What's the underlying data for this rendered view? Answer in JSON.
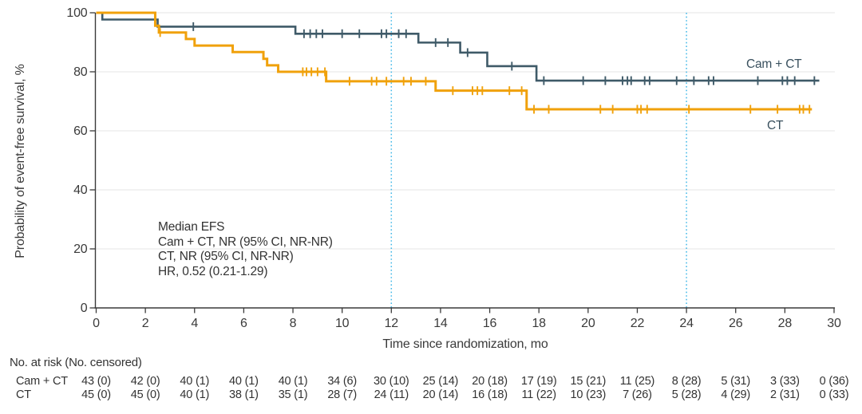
{
  "chart_data": {
    "type": "line",
    "subtype": "kaplan-meier-step-curve",
    "title": "",
    "xlabel": "Time since randomization, mo",
    "ylabel": "Probability of event-free survival, %",
    "xlim": [
      0,
      30
    ],
    "ylim": [
      0,
      100
    ],
    "xticks": [
      0,
      2,
      4,
      6,
      8,
      10,
      12,
      14,
      16,
      18,
      20,
      22,
      24,
      26,
      28,
      30
    ],
    "yticks": [
      0,
      20,
      40,
      60,
      80,
      100
    ],
    "grid": "horizontal light gray lines at 20/40/60/80/100",
    "reference_lines_x": [
      12,
      24
    ],
    "annotation_lines": [
      "Median EFS",
      "Cam + CT, NR (95% CI, NR-NR)",
      "CT, NR (95% CI, NR-NR)",
      "HR, 0.52 (0.21-1.29)"
    ],
    "series": [
      {
        "name": "Cam + CT",
        "color": "#3F5A68",
        "end_month": 29.4,
        "steps": [
          [
            0,
            100
          ],
          [
            0.25,
            97.7
          ],
          [
            2.5,
            95.3
          ],
          [
            8.1,
            92.9
          ],
          [
            13.1,
            89.9
          ],
          [
            14.8,
            86.5
          ],
          [
            15.9,
            81.9
          ],
          [
            17.9,
            77.0
          ]
        ],
        "censor_marks": [
          [
            3.95,
            95.3
          ],
          [
            8.45,
            92.9
          ],
          [
            8.7,
            92.9
          ],
          [
            8.95,
            92.9
          ],
          [
            9.2,
            92.9
          ],
          [
            10.0,
            92.9
          ],
          [
            10.7,
            92.9
          ],
          [
            11.6,
            92.9
          ],
          [
            11.8,
            92.9
          ],
          [
            12.3,
            92.9
          ],
          [
            12.6,
            92.9
          ],
          [
            13.8,
            89.9
          ],
          [
            14.3,
            89.9
          ],
          [
            15.1,
            86.5
          ],
          [
            16.9,
            81.9
          ],
          [
            18.2,
            77.0
          ],
          [
            19.8,
            77.0
          ],
          [
            20.7,
            77.0
          ],
          [
            21.4,
            77.0
          ],
          [
            21.6,
            77.0
          ],
          [
            21.75,
            77.0
          ],
          [
            22.3,
            77.0
          ],
          [
            22.5,
            77.0
          ],
          [
            23.6,
            77.0
          ],
          [
            24.3,
            77.0
          ],
          [
            24.9,
            77.0
          ],
          [
            25.1,
            77.0
          ],
          [
            26.9,
            77.0
          ],
          [
            27.9,
            77.0
          ],
          [
            28.1,
            77.0
          ],
          [
            28.4,
            77.0
          ],
          [
            29.2,
            77.0
          ]
        ]
      },
      {
        "name": "CT",
        "color": "#F0A10B",
        "end_month": 29.1,
        "steps": [
          [
            0,
            100
          ],
          [
            2.4,
            95.6
          ],
          [
            2.55,
            93.3
          ],
          [
            3.65,
            91.1
          ],
          [
            4.0,
            88.9
          ],
          [
            5.55,
            86.7
          ],
          [
            6.8,
            84.4
          ],
          [
            6.95,
            82.2
          ],
          [
            7.4,
            80.0
          ],
          [
            9.35,
            76.8
          ],
          [
            13.8,
            73.6
          ],
          [
            17.5,
            67.3
          ]
        ],
        "censor_marks": [
          [
            2.6,
            93.3
          ],
          [
            8.4,
            80.0
          ],
          [
            8.55,
            80.0
          ],
          [
            8.75,
            80.0
          ],
          [
            9.0,
            80.0
          ],
          [
            9.3,
            80.0
          ],
          [
            10.3,
            76.8
          ],
          [
            11.2,
            76.8
          ],
          [
            11.4,
            76.8
          ],
          [
            11.8,
            76.8
          ],
          [
            12.5,
            76.8
          ],
          [
            12.8,
            76.8
          ],
          [
            13.4,
            76.8
          ],
          [
            14.5,
            73.6
          ],
          [
            15.3,
            73.6
          ],
          [
            15.5,
            73.6
          ],
          [
            15.7,
            73.6
          ],
          [
            16.8,
            73.6
          ],
          [
            17.3,
            73.6
          ],
          [
            17.8,
            67.3
          ],
          [
            18.4,
            67.3
          ],
          [
            20.5,
            67.3
          ],
          [
            21.0,
            67.3
          ],
          [
            22.0,
            67.3
          ],
          [
            22.15,
            67.3
          ],
          [
            22.4,
            67.3
          ],
          [
            24.1,
            67.3
          ],
          [
            26.6,
            67.3
          ],
          [
            27.7,
            67.3
          ],
          [
            28.6,
            67.3
          ],
          [
            28.75,
            67.3
          ],
          [
            29.0,
            67.3
          ]
        ]
      }
    ]
  },
  "risk_table": {
    "title": "No. at risk (No. censored)",
    "timepoints": [
      0,
      2,
      4,
      6,
      8,
      10,
      12,
      14,
      16,
      18,
      20,
      22,
      24,
      26,
      28,
      30
    ],
    "rows": [
      {
        "label": "Cam + CT",
        "values": [
          "43 (0)",
          "42 (0)",
          "40 (1)",
          "40 (1)",
          "40 (1)",
          "34 (6)",
          "30 (10)",
          "25 (14)",
          "20 (18)",
          "17 (19)",
          "15 (21)",
          "11 (25)",
          "8 (28)",
          "5 (31)",
          "3 (33)",
          "0 (36)"
        ]
      },
      {
        "label": "CT",
        "values": [
          "45 (0)",
          "45 (0)",
          "40 (1)",
          "38 (1)",
          "35 (1)",
          "28 (7)",
          "24 (11)",
          "20 (14)",
          "16 (18)",
          "11 (22)",
          "10 (23)",
          "7 (26)",
          "5 (28)",
          "4 (29)",
          "2 (31)",
          "0 (33)"
        ]
      }
    ]
  },
  "colors": {
    "cam_ct_line": "#3F5A68",
    "ct_line": "#F0A10B",
    "reference_line": "#3FB7E8",
    "gridline": "#E9E9E9",
    "axis": "#3A3A3A",
    "text": "#333333"
  }
}
